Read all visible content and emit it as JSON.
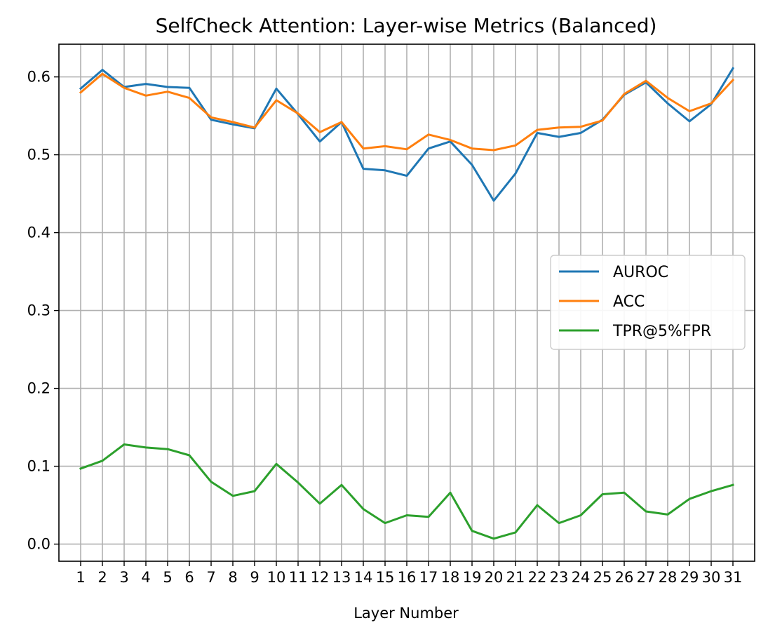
{
  "chart_data": {
    "type": "line",
    "title": "SelfCheck Attention: Layer-wise Metrics (Balanced)",
    "xlabel": "Layer Number",
    "ylabel": "",
    "xlim": [
      0,
      32
    ],
    "ylim": [
      -0.022,
      0.642
    ],
    "grid": true,
    "legend_position": "center-right",
    "x": [
      1,
      2,
      3,
      4,
      5,
      6,
      7,
      8,
      9,
      10,
      11,
      12,
      13,
      14,
      15,
      16,
      17,
      18,
      19,
      20,
      21,
      22,
      23,
      24,
      25,
      26,
      27,
      28,
      29,
      30,
      31
    ],
    "x_tick_labels": [
      "1",
      "2",
      "3",
      "4",
      "5",
      "6",
      "7",
      "8",
      "9",
      "10",
      "11",
      "12",
      "13",
      "14",
      "15",
      "16",
      "17",
      "18",
      "19",
      "20",
      "21",
      "22",
      "23",
      "24",
      "25",
      "26",
      "27",
      "28",
      "29",
      "30",
      "31"
    ],
    "y_ticks": [
      0.0,
      0.1,
      0.2,
      0.3,
      0.4,
      0.5,
      0.6
    ],
    "y_tick_labels": [
      "0.0",
      "0.1",
      "0.2",
      "0.3",
      "0.4",
      "0.5",
      "0.6"
    ],
    "series": [
      {
        "name": "AUROC",
        "color": "#1f77b4",
        "values": [
          0.585,
          0.609,
          0.587,
          0.591,
          0.587,
          0.586,
          0.545,
          0.539,
          0.534,
          0.585,
          0.552,
          0.517,
          0.542,
          0.482,
          0.48,
          0.473,
          0.508,
          0.517,
          0.487,
          0.441,
          0.476,
          0.528,
          0.523,
          0.528,
          0.545,
          0.577,
          0.593,
          0.566,
          0.543,
          0.565,
          0.611
        ]
      },
      {
        "name": "ACC",
        "color": "#ff7f0e",
        "values": [
          0.58,
          0.604,
          0.586,
          0.576,
          0.581,
          0.573,
          0.548,
          0.542,
          0.535,
          0.57,
          0.553,
          0.529,
          0.542,
          0.508,
          0.511,
          0.507,
          0.526,
          0.519,
          0.508,
          0.506,
          0.512,
          0.532,
          0.535,
          0.536,
          0.544,
          0.578,
          0.595,
          0.573,
          0.556,
          0.566,
          0.596
        ]
      },
      {
        "name": "TPR@5%FPR",
        "color": "#2ca02c",
        "values": [
          0.097,
          0.107,
          0.128,
          0.124,
          0.122,
          0.114,
          0.08,
          0.062,
          0.068,
          0.103,
          0.079,
          0.052,
          0.076,
          0.045,
          0.027,
          0.037,
          0.035,
          0.066,
          0.017,
          0.007,
          0.015,
          0.05,
          0.027,
          0.037,
          0.064,
          0.066,
          0.042,
          0.038,
          0.058,
          0.068,
          0.076
        ]
      }
    ]
  }
}
